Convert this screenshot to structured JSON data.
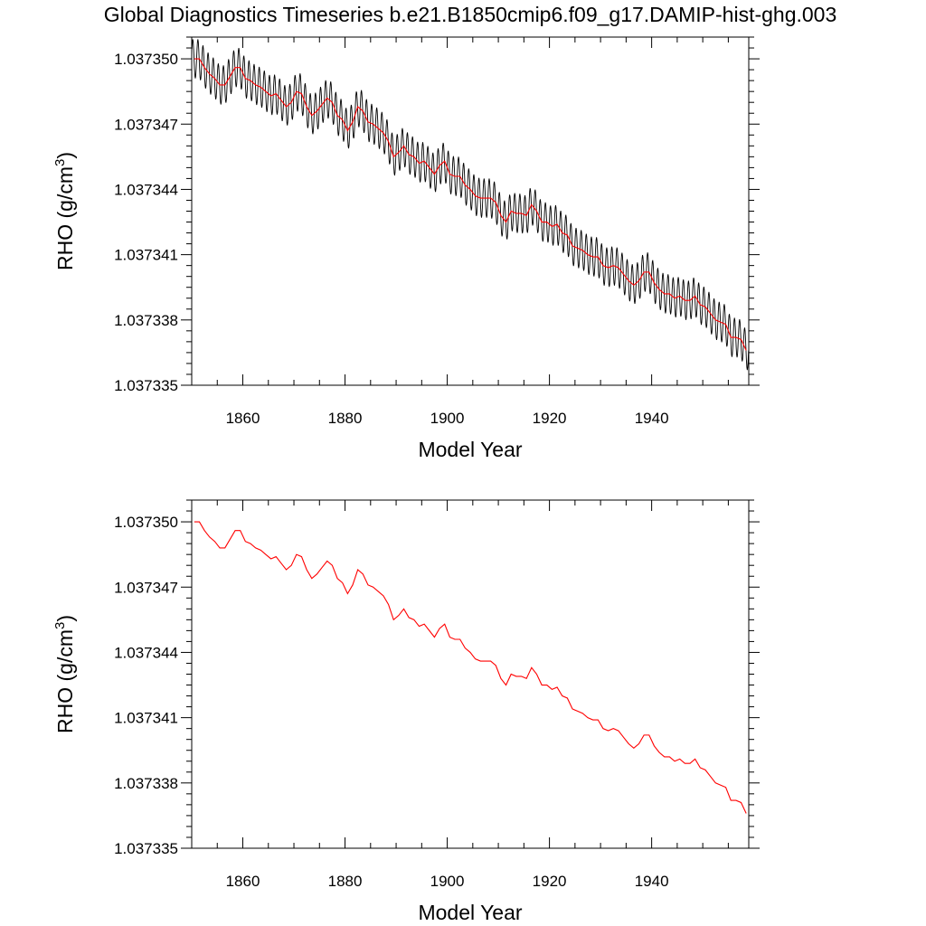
{
  "title": "Global Diagnostics Timeseries b.e21.B1850cmip6.f09_g17.DAMIP-hist-ghg.003",
  "chart_data": [
    {
      "type": "line",
      "xlabel": "Model Year",
      "ylabel_main": "RHO (g/cm",
      "ylabel_sup": "3",
      "ylabel_close": ")",
      "xlim": [
        1850,
        1959
      ],
      "ylim": [
        1.037335,
        1.037351
      ],
      "xticks": [
        1860,
        1880,
        1900,
        1920,
        1940
      ],
      "xtick_labels": [
        "1860",
        "1880",
        "1900",
        "1920",
        "1940"
      ],
      "yticks": [
        1.037335,
        1.037338,
        1.037341,
        1.037344,
        1.037347,
        1.03735
      ],
      "ytick_labels": [
        "1.037335",
        "1.037338",
        "1.037341",
        "1.037344",
        "1.037347",
        "1.037350"
      ],
      "grid": false,
      "series": [
        {
          "color": "#000000",
          "kind": "monthly",
          "seasonal_amplitude": 9e-07
        },
        {
          "color": "#ff0000",
          "kind": "annual"
        }
      ]
    },
    {
      "type": "line",
      "xlabel": "Model Year",
      "ylabel_main": "RHO (g/cm",
      "ylabel_sup": "3",
      "ylabel_close": ")",
      "xlim": [
        1850,
        1959
      ],
      "ylim": [
        1.037335,
        1.037351
      ],
      "xticks": [
        1860,
        1880,
        1900,
        1920,
        1940
      ],
      "xtick_labels": [
        "1860",
        "1880",
        "1900",
        "1920",
        "1940"
      ],
      "yticks": [
        1.037335,
        1.037338,
        1.037341,
        1.037344,
        1.037347,
        1.03735
      ],
      "ytick_labels": [
        "1.037335",
        "1.037338",
        "1.037341",
        "1.037344",
        "1.037347",
        "1.037350"
      ],
      "grid": false,
      "series": [
        {
          "color": "#ff0000",
          "kind": "annual"
        }
      ]
    }
  ],
  "annual_mean": {
    "x": [
      1850.5,
      1851.5,
      1852.5,
      1853.5,
      1854.5,
      1855.5,
      1856.5,
      1857.5,
      1858.5,
      1859.5,
      1860.5,
      1861.5,
      1862.5,
      1863.5,
      1864.5,
      1865.5,
      1866.5,
      1867.5,
      1868.5,
      1869.5,
      1870.5,
      1871.5,
      1872.5,
      1873.5,
      1874.5,
      1875.5,
      1876.5,
      1877.5,
      1878.5,
      1879.5,
      1880.5,
      1881.5,
      1882.5,
      1883.5,
      1884.5,
      1885.5,
      1886.5,
      1887.5,
      1888.5,
      1889.5,
      1890.5,
      1891.5,
      1892.5,
      1893.5,
      1894.5,
      1895.5,
      1896.5,
      1897.5,
      1898.5,
      1899.5,
      1900.5,
      1901.5,
      1902.5,
      1903.5,
      1904.5,
      1905.5,
      1906.5,
      1907.5,
      1908.5,
      1909.5,
      1910.5,
      1911.5,
      1912.5,
      1913.5,
      1914.5,
      1915.5,
      1916.5,
      1917.5,
      1918.5,
      1919.5,
      1920.5,
      1921.5,
      1922.5,
      1923.5,
      1924.5,
      1925.5,
      1926.5,
      1927.5,
      1928.5,
      1929.5,
      1930.5,
      1931.5,
      1932.5,
      1933.5,
      1934.5,
      1935.5,
      1936.5,
      1937.5,
      1938.5,
      1939.5,
      1940.5,
      1941.5,
      1942.5,
      1943.5,
      1944.5,
      1945.5,
      1946.5,
      1947.5,
      1948.5,
      1949.5,
      1950.5,
      1951.5,
      1952.5,
      1953.5,
      1954.5,
      1955.5,
      1956.5,
      1957.5,
      1958.5
    ],
    "y": [
      1.03735,
      1.03735,
      1.0373496,
      1.0373493,
      1.0373491,
      1.0373488,
      1.0373488,
      1.0373492,
      1.0373496,
      1.0373496,
      1.0373491,
      1.037349,
      1.0373488,
      1.0373487,
      1.0373485,
      1.0373483,
      1.0373484,
      1.0373481,
      1.0373478,
      1.037348,
      1.0373485,
      1.0373484,
      1.0373478,
      1.0373474,
      1.0373476,
      1.0373479,
      1.0373482,
      1.037348,
      1.0373474,
      1.0373472,
      1.0373467,
      1.0373471,
      1.0373478,
      1.0373476,
      1.0373471,
      1.037347,
      1.0373468,
      1.0373466,
      1.0373462,
      1.0373455,
      1.0373457,
      1.037346,
      1.0373456,
      1.0373455,
      1.0373452,
      1.0373453,
      1.037345,
      1.0373447,
      1.0373451,
      1.0373453,
      1.0373447,
      1.0373446,
      1.0373446,
      1.0373442,
      1.037344,
      1.0373437,
      1.0373436,
      1.0373436,
      1.0373436,
      1.0373434,
      1.0373428,
      1.0373425,
      1.037343,
      1.0373429,
      1.0373429,
      1.0373428,
      1.0373433,
      1.037343,
      1.0373425,
      1.0373425,
      1.0373423,
      1.0373424,
      1.037342,
      1.0373419,
      1.0373414,
      1.0373413,
      1.0373412,
      1.037341,
      1.0373409,
      1.0373409,
      1.0373405,
      1.0373404,
      1.0373405,
      1.0373404,
      1.0373401,
      1.0373398,
      1.0373396,
      1.0373398,
      1.0373402,
      1.0373402,
      1.0373397,
      1.0373394,
      1.0373392,
      1.0373392,
      1.037339,
      1.0373391,
      1.0373389,
      1.0373389,
      1.0373391,
      1.0373387,
      1.0373386,
      1.0373383,
      1.037338,
      1.0373379,
      1.0373378,
      1.0373372,
      1.0373372,
      1.0373371,
      1.0373366
    ]
  }
}
